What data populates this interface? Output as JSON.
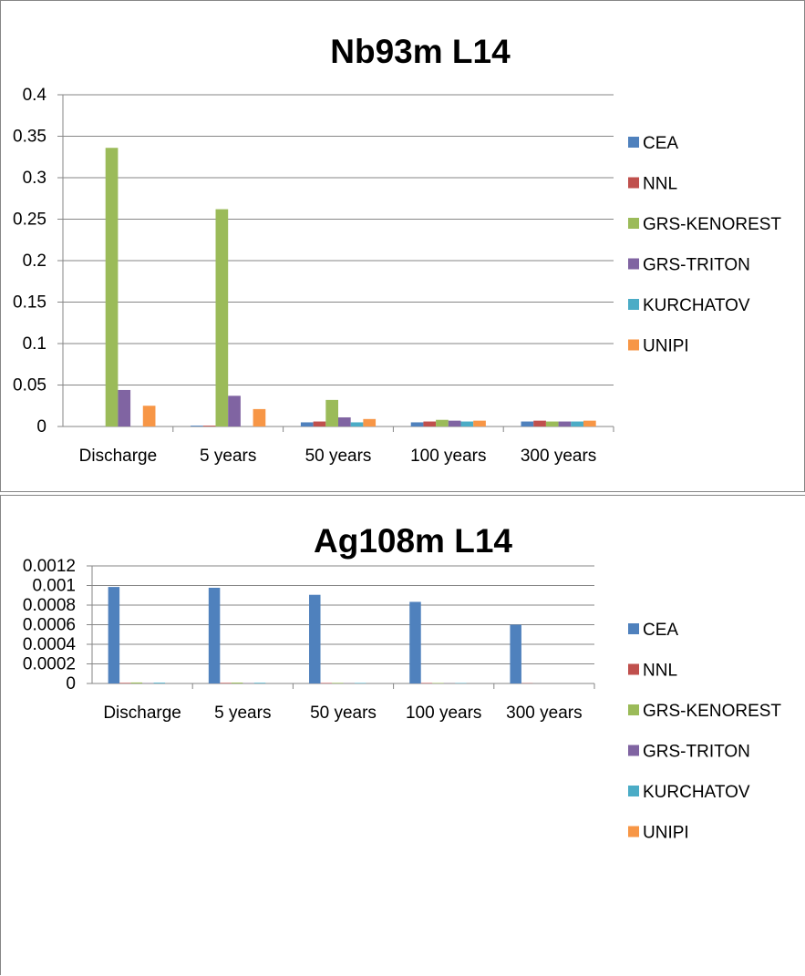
{
  "series_colors": [
    "#4F81BD",
    "#C0504D",
    "#9BBB59",
    "#8064A2",
    "#4BACC6",
    "#F79646"
  ],
  "chart_data": [
    {
      "type": "bar",
      "title": "Nb93m L14",
      "categories": [
        "Discharge",
        "5 years",
        "50 years",
        "100 years",
        "300 years"
      ],
      "ylim": [
        0,
        0.4
      ],
      "yticks": [
        0,
        0.05,
        0.1,
        0.15,
        0.2,
        0.25,
        0.3,
        0.35,
        0.4
      ],
      "ytick_labels": [
        "0",
        "0.05",
        "0.1",
        "0.15",
        "0.2",
        "0.25",
        "0.3",
        "0.35",
        "0.4"
      ],
      "grid": true,
      "legend_position": "right",
      "series": [
        {
          "name": "CEA",
          "values": [
            0,
            0.001,
            0.005,
            0.005,
            0.006
          ]
        },
        {
          "name": "NNL",
          "values": [
            0,
            0.001,
            0.006,
            0.006,
            0.007
          ]
        },
        {
          "name": "GRS-KENOREST",
          "values": [
            0.336,
            0.262,
            0.032,
            0.008,
            0.006
          ]
        },
        {
          "name": "GRS-TRITON",
          "values": [
            0.044,
            0.037,
            0.011,
            0.007,
            0.006
          ]
        },
        {
          "name": "KURCHATOV",
          "values": [
            0,
            0,
            0.005,
            0.006,
            0.006
          ]
        },
        {
          "name": "UNIPI",
          "values": [
            0.025,
            0.021,
            0.009,
            0.007,
            0.007
          ]
        }
      ]
    },
    {
      "type": "bar",
      "title": "Ag108m L14",
      "categories": [
        "Discharge",
        "5 years",
        "50 years",
        "100 years",
        "300 years"
      ],
      "ylim": [
        0,
        0.0012
      ],
      "yticks": [
        0,
        0.0002,
        0.0004,
        0.0006,
        0.0008,
        0.001,
        0.0012
      ],
      "ytick_labels": [
        "0",
        "0.0002",
        "0.0004",
        "0.0006",
        "0.0008",
        "0.001",
        "0.0012"
      ],
      "grid": true,
      "legend_position": "right",
      "series": [
        {
          "name": "CEA",
          "values": [
            0.000985,
            0.000977,
            0.000905,
            0.000833,
            0.0006
          ]
        },
        {
          "name": "NNL",
          "values": [
            6e-06,
            6e-06,
            5e-06,
            5e-06,
            3e-06
          ]
        },
        {
          "name": "GRS-KENOREST",
          "values": [
            1e-05,
            9e-06,
            6e-06,
            5e-06,
            0
          ]
        },
        {
          "name": "GRS-TRITON",
          "values": [
            2e-06,
            2e-06,
            1e-06,
            1e-06,
            0
          ]
        },
        {
          "name": "KURCHATOV",
          "values": [
            8e-06,
            7e-06,
            5e-06,
            4e-06,
            0
          ]
        },
        {
          "name": "UNIPI",
          "values": [
            0,
            0,
            0,
            0,
            0
          ]
        }
      ]
    }
  ]
}
